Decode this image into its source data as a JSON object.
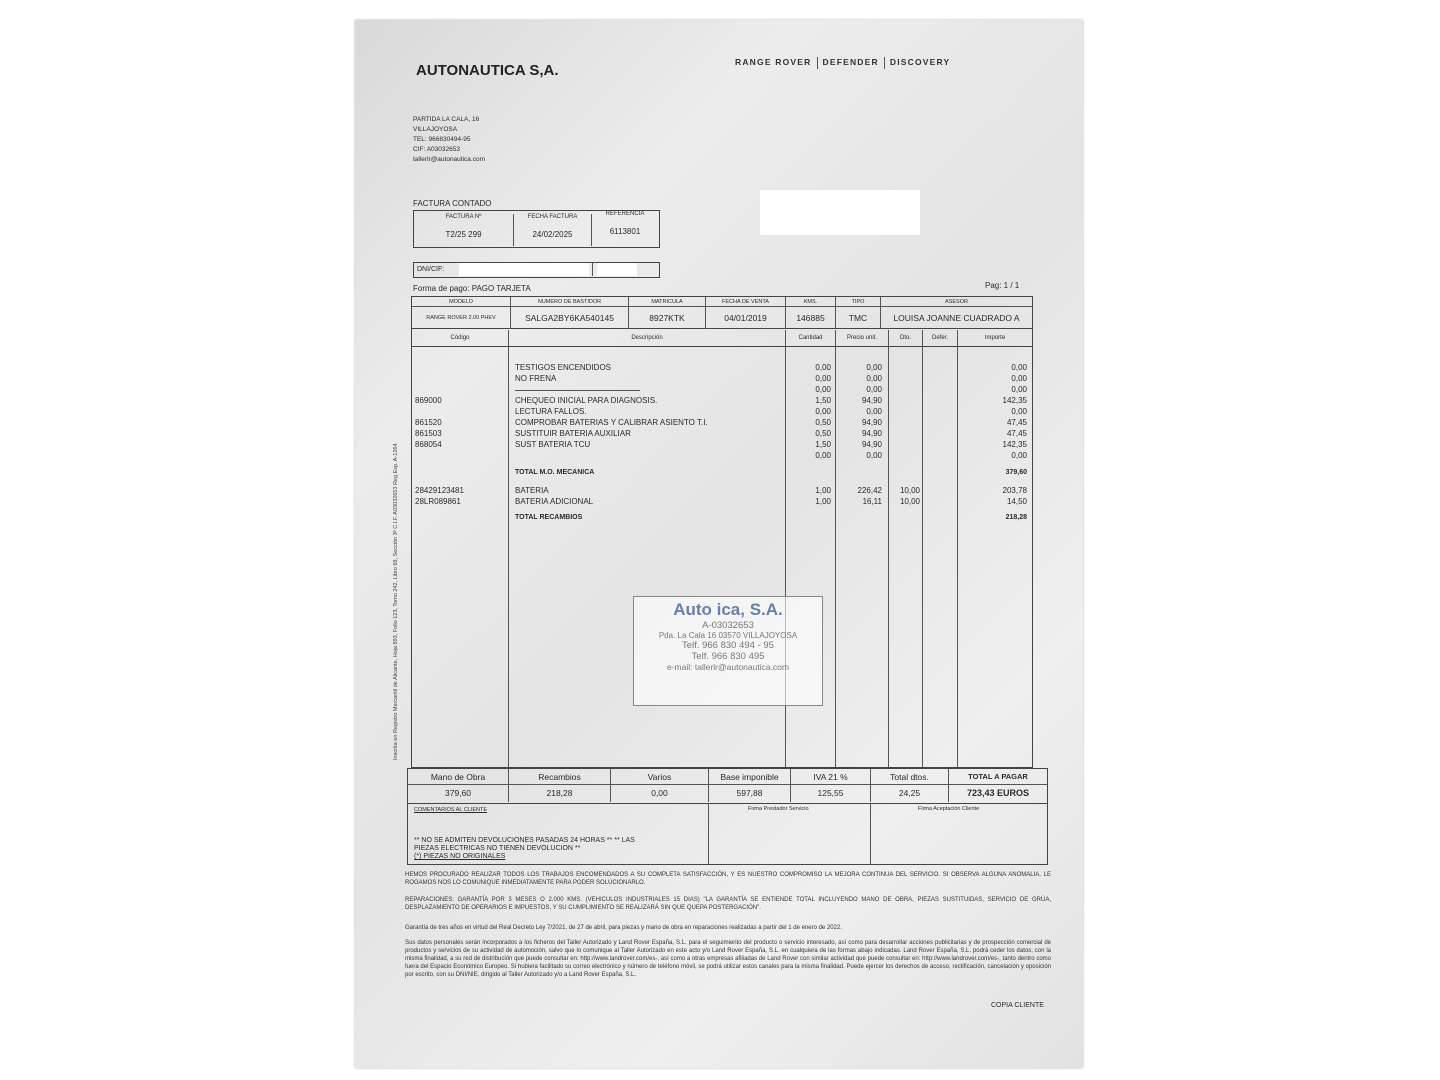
{
  "company": {
    "name": "AUTONAUTICA S,A.",
    "address": [
      "PARTIDA LA CALA, 16",
      "VILLAJOYOSA",
      "TEL: 966830494-95",
      "CIF: A03032653",
      "tallerlr@autonautica.com"
    ]
  },
  "brands": [
    "RANGE ROVER",
    "DEFENDER",
    "DISCOVERY"
  ],
  "invoice": {
    "type": "FACTURA CONTADO",
    "headers": [
      "FACTURA Nº",
      "FECHA FACTURA",
      "REFERENCIA"
    ],
    "values": [
      "T2/25 299",
      "24/02/2025",
      "6113801"
    ],
    "dni_label": "DNI/CIF: ",
    "payment": "Forma de pago:  PAGO TARJETA",
    "page": "Pag: 1 / 1"
  },
  "vehicle": {
    "headers": [
      "MODELO",
      "NUMERO DE BASTIDOR",
      "MATRICULA",
      "FECHA DE VENTA",
      "KMS.",
      "TIPO",
      "ASESOR"
    ],
    "values": [
      "RANGE ROVER 2.00 PHEV",
      "SALGA2BY6KA540145",
      "8927KTK",
      "04/01/2019",
      "146885",
      "TMC",
      "LOUISA JOANNE CUADRADO A"
    ]
  },
  "items": {
    "headers": [
      "Código",
      "Descripción",
      "Cantidad",
      "Precio unit.",
      "Dto.",
      "Defer.",
      "Importe"
    ],
    "rows": [
      {
        "code": "",
        "desc": "TESTIGOS ENCENDIDOS",
        "qty": "0,00",
        "price": "0,00",
        "dto": "",
        "imp": "0,00"
      },
      {
        "code": "",
        "desc": "NO FRENA",
        "qty": "0,00",
        "price": "0,00",
        "dto": "",
        "imp": "0,00"
      },
      {
        "code": "",
        "desc": "",
        "qty": "0,00",
        "price": "0,00",
        "dto": "",
        "imp": "0,00",
        "rule": true
      },
      {
        "code": "869000",
        "desc": "CHEQUEO INICIAL PARA DIAGNOSIS.",
        "qty": "1,50",
        "price": "94,90",
        "dto": "",
        "imp": "142,35"
      },
      {
        "code": "",
        "desc": "LECTURA FALLOS.",
        "qty": "0,00",
        "price": "0,00",
        "dto": "",
        "imp": "0,00"
      },
      {
        "code": "861520",
        "desc": "COMPROBAR BATERIAS Y CALIBRAR ASIENTO T.I.",
        "qty": "0,50",
        "price": "94,90",
        "dto": "",
        "imp": "47,45"
      },
      {
        "code": "861503",
        "desc": "SUSTITUIR BATERIA AUXILIAR",
        "qty": "0,50",
        "price": "94,90",
        "dto": "",
        "imp": "47,45"
      },
      {
        "code": "868054",
        "desc": "SUST BATERIA TCU",
        "qty": "1,50",
        "price": "94,90",
        "dto": "",
        "imp": "142,35"
      },
      {
        "code": "",
        "desc": "",
        "qty": "0,00",
        "price": "0,00",
        "dto": "",
        "imp": "0,00"
      },
      {
        "code": "",
        "desc": "TOTAL M.O. MECANICA",
        "qty": "",
        "price": "",
        "dto": "",
        "imp": "379,60",
        "total": true
      },
      {
        "code": "28429123481",
        "desc": "BATERIA",
        "qty": "1,00",
        "price": "226,42",
        "dto": "10,00",
        "imp": "203,78"
      },
      {
        "code": "28LR089861",
        "desc": "BATERIA ADICIONAL",
        "qty": "1,00",
        "price": "16,11",
        "dto": "10,00",
        "imp": "14,50"
      },
      {
        "code": "",
        "desc": "TOTAL RECAMBIOS",
        "qty": "",
        "price": "",
        "dto": "",
        "imp": "218,28",
        "total": true
      }
    ]
  },
  "totals": {
    "headers": [
      "Mano de Obra",
      "Recambios",
      "Varios",
      "Base imponible",
      "IVA  21 %",
      "Total dtos.",
      "TOTAL A PAGAR"
    ],
    "values": [
      "379,60",
      "218,28",
      "0,00",
      "597,88",
      "125,55",
      "24,25",
      "723,43 EUROS"
    ]
  },
  "comments": {
    "label": "COMENTARIOS AL CLIENTE",
    "firma_prestador": "Firma Prestador Servicio",
    "firma_cliente": "Firma Aceptación Cliente",
    "lines": [
      "** NO SE ADMITEN DEVOLUCIONES PASADAS 24 HORAS ** ** LAS",
      "PIEZAS ELECTRICAS NO TIENEN DEVOLUCION **",
      "(*) PIEZAS NO ORIGINALES"
    ]
  },
  "legal": [
    "HEMOS PROCURADO REALIZAR TODOS LOS TRABAJOS ENCOMENDADOS A SU COMPLETA SATISFACCIÓN, Y ES NUESTRO COMPROMISO LA MEJORA CONTINUA DEL SERVICIO. SI OBSERVA ALGUNA ANOMALIA, LE ROGAMOS NOS LO COMUNIQUE INMEDIATAMENTE PARA PODER SOLUCIONARLO.",
    "REPARACIONES: GARANTÍA POR 3 MESES O 2.000 KMS. (VEHICULOS INDUSTRIALES 15 DIAS) \"LA GARANTÍA SE ENTIENDE TOTAL INCLUYENDO MANO DE OBRA, PIEZAS SUSTITUIDAS, SERVICIO DE GRÚA, DESPLAZAMIENTO DE OPERARIOS E IMPUESTOS, Y SU CUMPLIMIENTO SE REALIZARÁ SIN QUE QUEPA POSTERGACIÓN\".",
    "Garantía de tres años en virtud del Real Decreto Ley 7/2021, de 27 de abril, para piezas y mano de obra en reparaciones realizadas a partir del 1 de enero de 2022.",
    "Sus datos personales serán incorporados a los ficheros del Taller Autorizado y Land Rover España, S.L. para el seguimiento del producto o servicio interesado, así como para desarrollar acciones publicitarias y de prospección comercial de productos y servicios de su actividad de automoción, salvo que lo comunique al Taller Autorizado en este acto y/o Land Rover España, S.L. en cualquiera de las formas abajo indicadas. Land Rover España, S.L. podrá ceder los datos, con la misma finalidad, a su red de distribución que puede consultar en: http://www.landrover.com/es-, así como a otras empresas afiliadas de Land Rover con similar actividad que puede consultar en: http://www.landrover.com/es-, tanto dentro como fuera del Espacio Económico Europeo. Si hubiera facilitado su correo electrónico y número de teléfono móvil, se podrá utilizar estos canales para la misma finalidad. Puede ejercer los derechos de acceso, rectificación, cancelación y oposición por escrito, con su DNI/NIE, dirigido al Taller Autorizado y/o a Land Rover España, S.L."
  ],
  "copy_label": "COPIA CLIENTE",
  "side_text": "Inscrita en Registro Mercantil de Alicante, Hoja 893, Folio 123, Tomo 242, Libro 68, Sección 3ª C.I.F. A03032653 Reg.Esp. A-1264",
  "stamp": {
    "lines": [
      "Auto     ica, S.A.",
      "A-03032653",
      "Pda. La Cala 16 03570 VILLAJOYOSA",
      "Telf. 966 830 494 - 95",
      "Telf. 966 830 495",
      "e-mail: tallerlr@autonautica.com"
    ]
  }
}
